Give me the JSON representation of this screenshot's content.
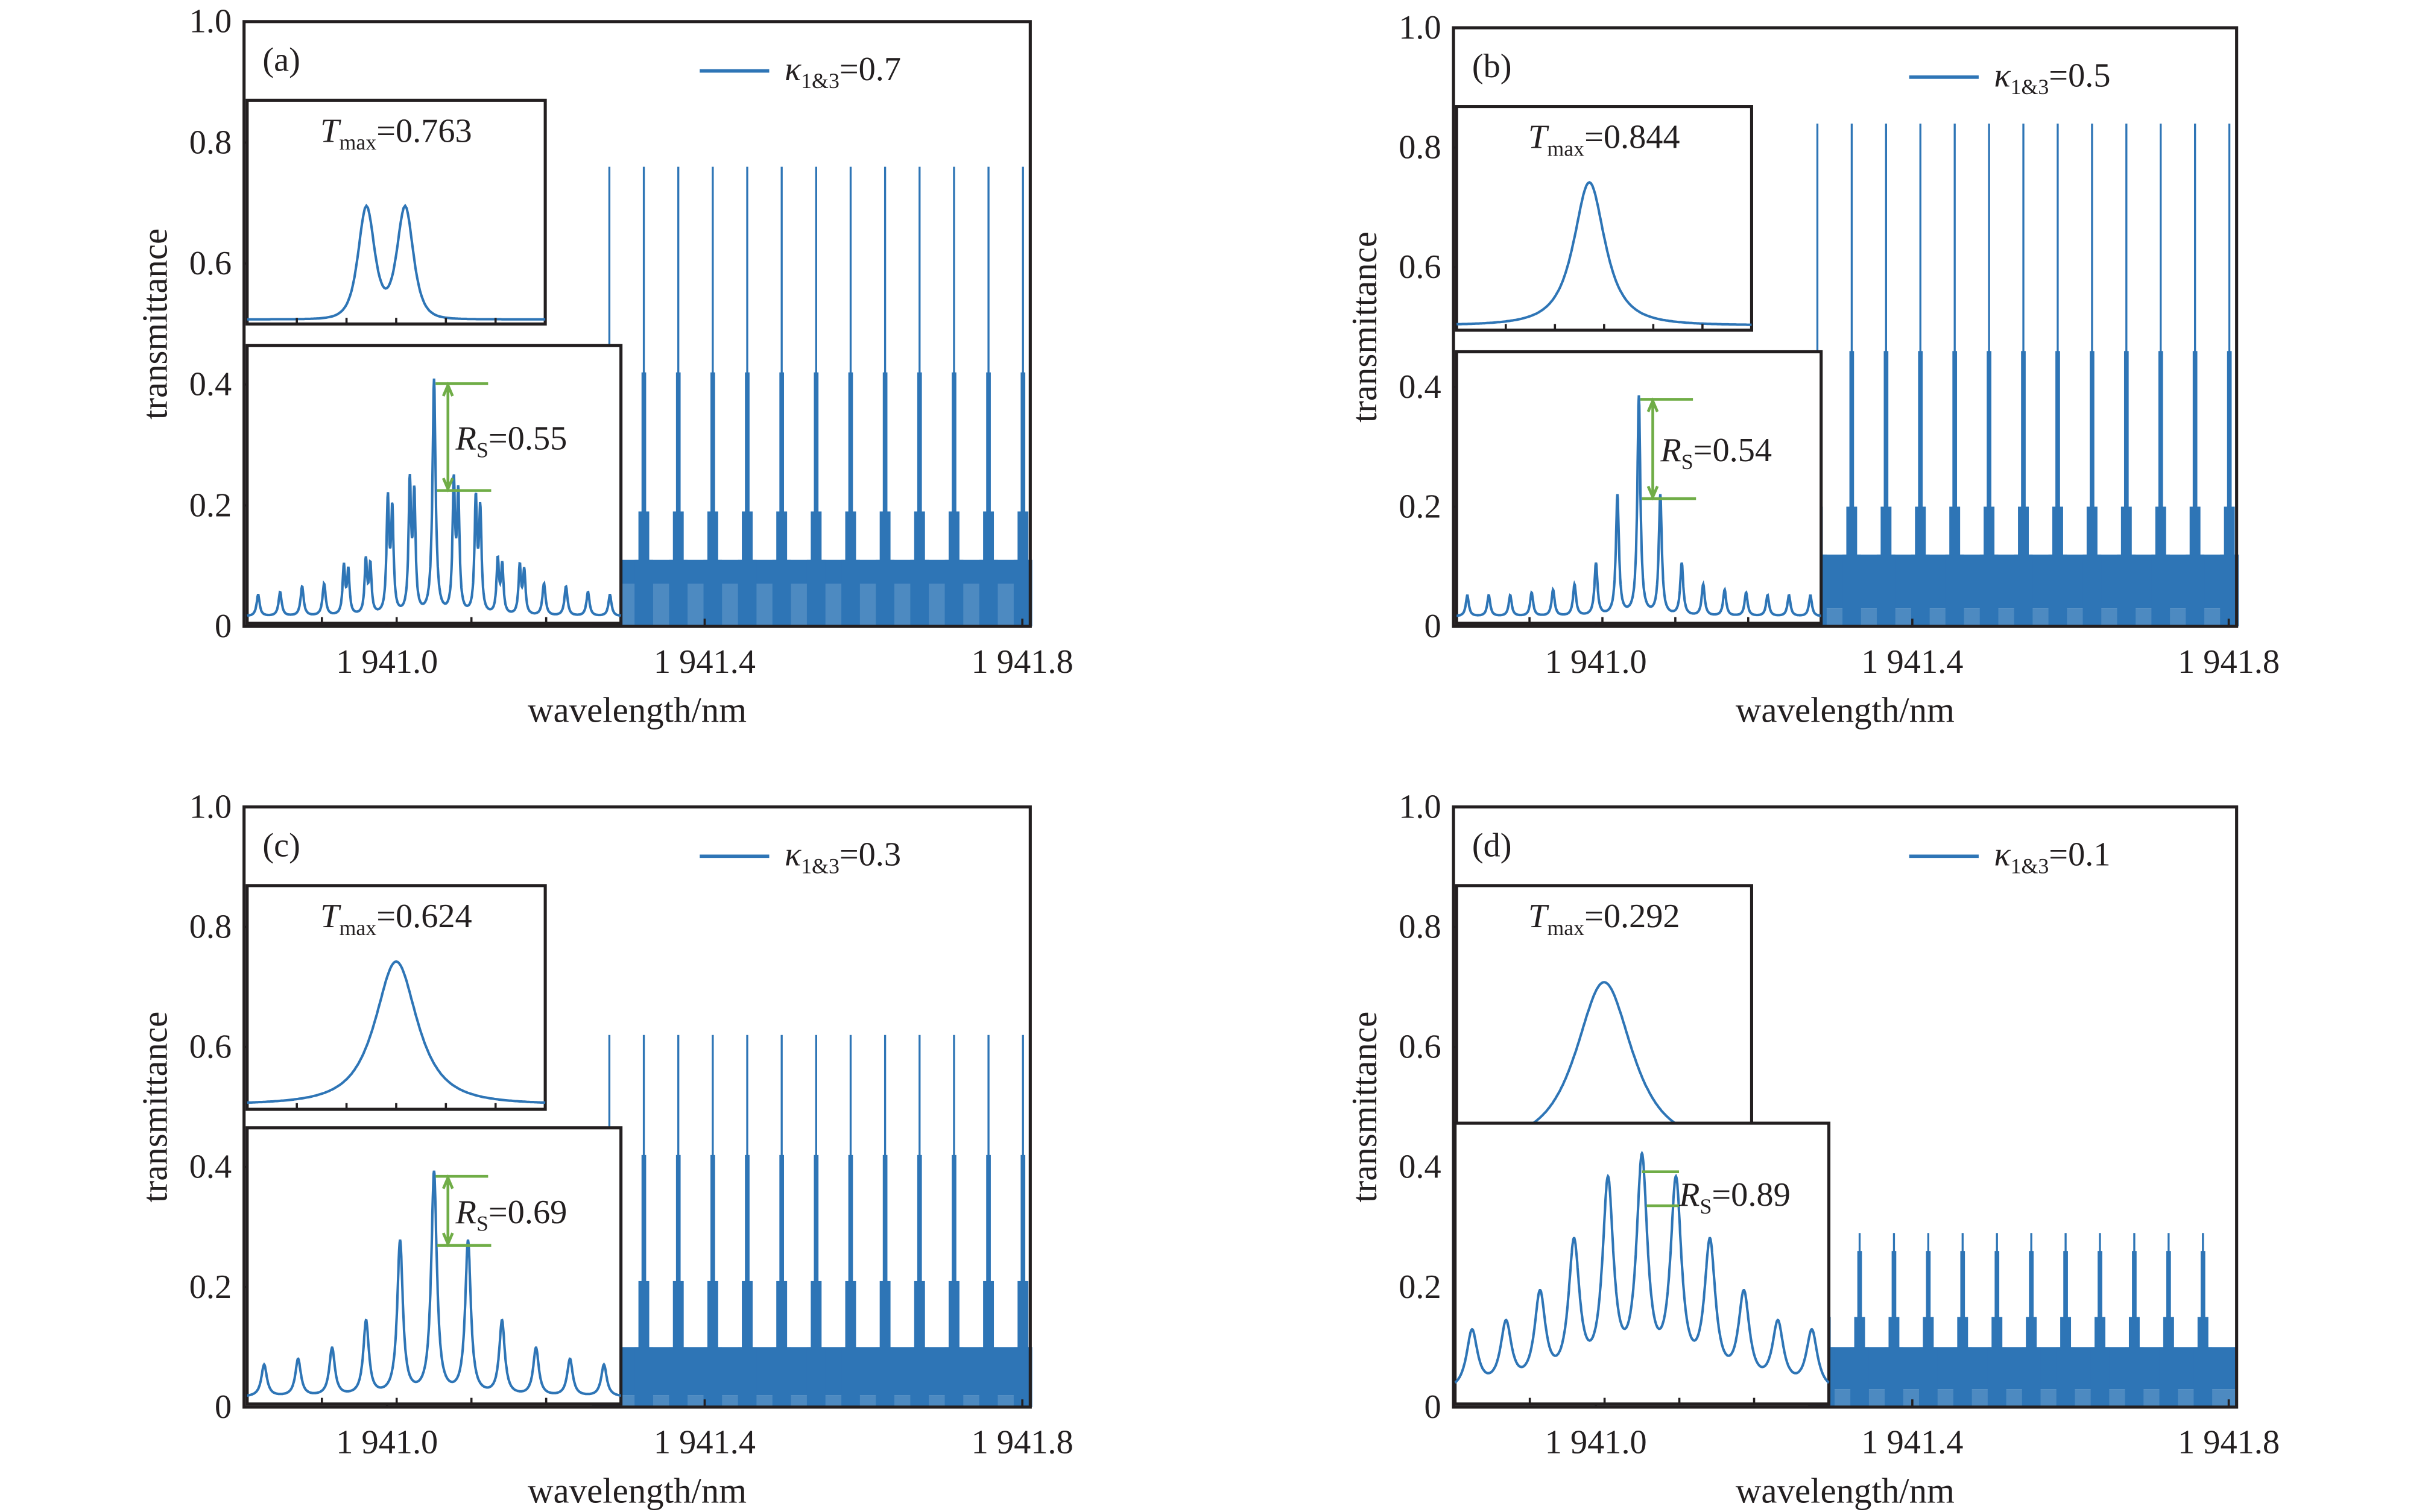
{
  "figure": {
    "background": "#ffffff",
    "series_color": "#2e75b6",
    "annotation_color": "#70ad47",
    "axis_color": "#231f20"
  },
  "chart_data": [
    {
      "id": "a",
      "type": "line",
      "panel_label": "(a)",
      "xlabel": "wavelength/nm",
      "ylabel": "transmittance",
      "xlim": [
        1940.82,
        1941.81
      ],
      "ylim": [
        0,
        1.0
      ],
      "xticks": [
        1941.0,
        1941.4,
        1941.8
      ],
      "xtick_labels": [
        "1 941.0",
        "1 941.4",
        "1 941.8"
      ],
      "yticks": [
        0,
        0.2,
        0.4,
        0.6,
        0.8,
        1.0
      ],
      "ytick_labels": [
        "0",
        "0.2",
        "0.4",
        "0.6",
        "0.8",
        "1.0"
      ],
      "legend": {
        "symbol": "κ",
        "subscript": "1&3",
        "value_text": "=0.7",
        "placement": "top-right"
      },
      "series": [
        {
          "name": "κ1&3=0.7",
          "kappa": 0.7
        }
      ],
      "spectrum": {
        "spike_start": 1941.28,
        "spike_period": 0.0434,
        "spike_count": 13,
        "spike_peak": 0.76,
        "band_levels": [
          0.42,
          0.19,
          0.11
        ],
        "floor": 0.07
      },
      "inset_upper": {
        "annotation_symbol": "T",
        "annotation_subscript": "max",
        "annotation_value": "=0.763",
        "tmax": 0.763,
        "shape": "double-peak"
      },
      "inset_lower": {
        "annotation_symbol": "R",
        "annotation_subscript": "S",
        "annotation_value": "=0.55",
        "rs": 0.55,
        "peaks": [
          0.04,
          0.045,
          0.055,
          0.06,
          0.09,
          0.1,
          0.21,
          0.24,
          0.44,
          0.24,
          0.21,
          0.1,
          0.09,
          0.06,
          0.055,
          0.045,
          0.04
        ],
        "split": true
      }
    },
    {
      "id": "b",
      "type": "line",
      "panel_label": "(b)",
      "xlabel": "wavelength/nm",
      "ylabel": "transmittance",
      "xlim": [
        1940.82,
        1941.81
      ],
      "ylim": [
        0,
        1.0
      ],
      "xticks": [
        1941.0,
        1941.4,
        1941.8
      ],
      "xtick_labels": [
        "1 941.0",
        "1 941.4",
        "1 941.8"
      ],
      "yticks": [
        0,
        0.2,
        0.4,
        0.6,
        0.8,
        1.0
      ],
      "ytick_labels": [
        "0",
        "0.2",
        "0.4",
        "0.6",
        "0.8",
        "1.0"
      ],
      "legend": {
        "symbol": "κ",
        "subscript": "1&3",
        "value_text": "=0.5",
        "placement": "top-right"
      },
      "series": [
        {
          "name": "κ1&3=0.5",
          "kappa": 0.5
        }
      ],
      "spectrum": {
        "spike_start": 1941.28,
        "spike_period": 0.0434,
        "spike_count": 13,
        "spike_peak": 0.84,
        "band_levels": [
          0.46,
          0.2,
          0.12
        ],
        "floor": 0.03
      },
      "inset_upper": {
        "annotation_symbol": "T",
        "annotation_subscript": "max",
        "annotation_value": "=0.844",
        "tmax": 0.844,
        "shape": "single-peak-narrow"
      },
      "inset_lower": {
        "annotation_symbol": "R",
        "annotation_subscript": "S",
        "annotation_value": "=0.54",
        "rs": 0.54,
        "peaks": [
          0.04,
          0.04,
          0.04,
          0.045,
          0.05,
          0.06,
          0.1,
          0.23,
          0.42,
          0.23,
          0.1,
          0.06,
          0.05,
          0.045,
          0.04,
          0.04,
          0.04
        ],
        "split": false
      }
    },
    {
      "id": "c",
      "type": "line",
      "panel_label": "(c)",
      "xlabel": "wavelength/nm",
      "ylabel": "transmittance",
      "xlim": [
        1940.82,
        1941.81
      ],
      "ylim": [
        0,
        1.0
      ],
      "xticks": [
        1941.0,
        1941.4,
        1941.8
      ],
      "xtick_labels": [
        "1 941.0",
        "1 941.4",
        "1 941.8"
      ],
      "yticks": [
        0,
        0.2,
        0.4,
        0.6,
        0.8,
        1.0
      ],
      "ytick_labels": [
        "0",
        "0.2",
        "0.4",
        "0.6",
        "0.8",
        "1.0"
      ],
      "legend": {
        "symbol": "κ",
        "subscript": "1&3",
        "value_text": "=0.3",
        "placement": "top-right"
      },
      "series": [
        {
          "name": "κ1&3=0.3",
          "kappa": 0.3
        }
      ],
      "spectrum": {
        "spike_start": 1941.28,
        "spike_period": 0.0434,
        "spike_count": 13,
        "spike_peak": 0.62,
        "band_levels": [
          0.42,
          0.21,
          0.1
        ],
        "floor": 0.02
      },
      "inset_upper": {
        "annotation_symbol": "T",
        "annotation_subscript": "max",
        "annotation_value": "=0.624",
        "tmax": 0.624,
        "shape": "single-peak"
      },
      "inset_lower": {
        "annotation_symbol": "R",
        "annotation_subscript": "S",
        "annotation_value": "=0.69",
        "rs": 0.69,
        "peaks": [
          0.06,
          0.07,
          0.09,
          0.14,
          0.29,
          0.42,
          0.29,
          0.14,
          0.09,
          0.07,
          0.06
        ],
        "split": false
      }
    },
    {
      "id": "d",
      "type": "line",
      "panel_label": "(d)",
      "xlabel": "wavelength/nm",
      "ylabel": "transmittance",
      "xlim": [
        1940.82,
        1941.81
      ],
      "ylim": [
        0,
        1.0
      ],
      "xticks": [
        1941.0,
        1941.4,
        1941.8
      ],
      "xtick_labels": [
        "1 941.0",
        "1 941.4",
        "1 941.8"
      ],
      "yticks": [
        0,
        0.2,
        0.4,
        0.6,
        0.8,
        1.0
      ],
      "ytick_labels": [
        "0",
        "0.2",
        "0.4",
        "0.6",
        "0.8",
        "1.0"
      ],
      "legend": {
        "symbol": "κ",
        "subscript": "1&3",
        "value_text": "=0.1",
        "placement": "top-right"
      },
      "series": [
        {
          "name": "κ1&3=0.1",
          "kappa": 0.1
        }
      ],
      "spectrum": {
        "spike_start": 1941.29,
        "spike_period": 0.0434,
        "spike_count": 12,
        "spike_peak": 0.29,
        "band_levels": [
          0.26,
          0.15,
          0.1
        ],
        "floor": 0.03
      },
      "inset_upper": {
        "annotation_symbol": "T",
        "annotation_subscript": "max",
        "annotation_value": "=0.292",
        "tmax": 0.292,
        "shape": "single-peak-wide"
      },
      "inset_lower": {
        "annotation_symbol": "R",
        "annotation_subscript": "S",
        "annotation_value": "=0.89",
        "rs": 0.89,
        "peaks": [
          0.11,
          0.12,
          0.17,
          0.26,
          0.37,
          0.41,
          0.37,
          0.26,
          0.17,
          0.12,
          0.11
        ],
        "split": false
      }
    }
  ]
}
